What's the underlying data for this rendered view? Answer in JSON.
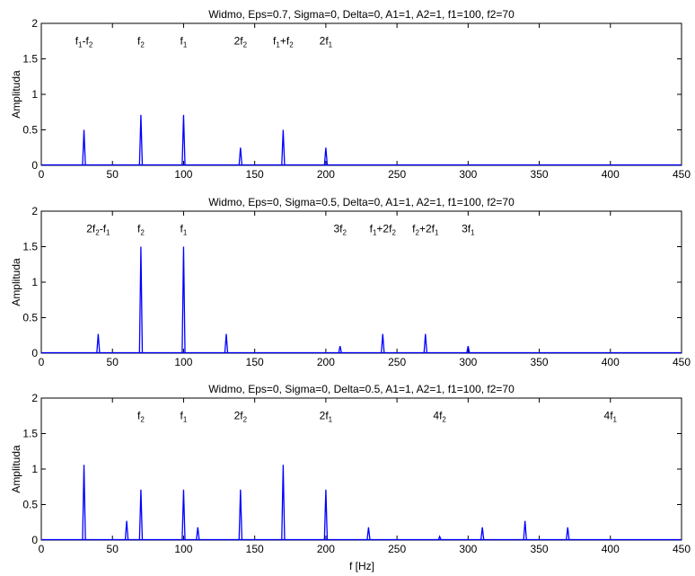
{
  "figure": {
    "xlabel": "f [Hz]"
  },
  "chart_data": [
    {
      "type": "line",
      "title": "Widmo, Eps=0.7, Sigma=0, Delta=0, A1=1, A2=1, f1=100, f2=70",
      "xlabel": "",
      "ylabel": "Amplituda",
      "xlim": [
        0,
        450
      ],
      "ylim": [
        0,
        2
      ],
      "xticks": [
        "0",
        "50",
        "100",
        "150",
        "200",
        "250",
        "300",
        "350",
        "400",
        "450"
      ],
      "yticks": [
        "0",
        "0.5",
        "1",
        "1.5",
        "2"
      ],
      "grid": false,
      "series": [
        {
          "color": "#0000ff",
          "peaks": [
            [
              30,
              0.5
            ],
            [
              70,
              0.71
            ],
            [
              100,
              0.71
            ],
            [
              140,
              0.25
            ],
            [
              170,
              0.5
            ],
            [
              200,
              0.25
            ]
          ]
        }
      ],
      "annotations": [
        {
          "x": 30,
          "y": 1.7,
          "parts": [
            [
              "f",
              0
            ],
            [
              "1",
              1
            ],
            [
              "-f",
              0
            ],
            [
              "2",
              1
            ]
          ]
        },
        {
          "x": 70,
          "y": 1.7,
          "parts": [
            [
              "f",
              0
            ],
            [
              "2",
              1
            ]
          ]
        },
        {
          "x": 100,
          "y": 1.7,
          "parts": [
            [
              "f",
              0
            ],
            [
              "1",
              1
            ]
          ]
        },
        {
          "x": 140,
          "y": 1.7,
          "parts": [
            [
              "2f",
              0
            ],
            [
              "2",
              1
            ]
          ]
        },
        {
          "x": 170,
          "y": 1.7,
          "parts": [
            [
              "f",
              0
            ],
            [
              "1",
              1
            ],
            [
              "+f",
              0
            ],
            [
              "2",
              1
            ]
          ]
        },
        {
          "x": 200,
          "y": 1.7,
          "parts": [
            [
              "2f",
              0
            ],
            [
              "1",
              1
            ]
          ]
        }
      ]
    },
    {
      "type": "line",
      "title": "Widmo, Eps=0, Sigma=0.5, Delta=0, A1=1, A2=1, f1=100, f2=70",
      "xlabel": "",
      "ylabel": "Amplituda",
      "xlim": [
        0,
        450
      ],
      "ylim": [
        0,
        2
      ],
      "xticks": [
        "0",
        "50",
        "100",
        "150",
        "200",
        "250",
        "300",
        "350",
        "400",
        "450"
      ],
      "yticks": [
        "0",
        "0.5",
        "1",
        "1.5",
        "2"
      ],
      "grid": false,
      "series": [
        {
          "color": "#0000ff",
          "peaks": [
            [
              40,
              0.27
            ],
            [
              70,
              1.5
            ],
            [
              100,
              1.5
            ],
            [
              130,
              0.27
            ],
            [
              210,
              0.1
            ],
            [
              240,
              0.27
            ],
            [
              270,
              0.27
            ],
            [
              300,
              0.1
            ]
          ]
        }
      ],
      "annotations": [
        {
          "x": 40,
          "y": 1.7,
          "parts": [
            [
              "2f",
              0
            ],
            [
              "2",
              1
            ],
            [
              "-f",
              0
            ],
            [
              "1",
              1
            ]
          ]
        },
        {
          "x": 70,
          "y": 1.7,
          "parts": [
            [
              "f",
              0
            ],
            [
              "2",
              1
            ]
          ]
        },
        {
          "x": 100,
          "y": 1.7,
          "parts": [
            [
              "f",
              0
            ],
            [
              "1",
              1
            ]
          ]
        },
        {
          "x": 210,
          "y": 1.7,
          "parts": [
            [
              "3f",
              0
            ],
            [
              "2",
              1
            ]
          ]
        },
        {
          "x": 240,
          "y": 1.7,
          "parts": [
            [
              "f",
              0
            ],
            [
              "1",
              1
            ],
            [
              "+2f",
              0
            ],
            [
              "2",
              1
            ]
          ]
        },
        {
          "x": 270,
          "y": 1.7,
          "parts": [
            [
              "f",
              0
            ],
            [
              "2",
              1
            ],
            [
              "+2f",
              0
            ],
            [
              "1",
              1
            ]
          ]
        },
        {
          "x": 300,
          "y": 1.7,
          "parts": [
            [
              "3f",
              0
            ],
            [
              "1",
              1
            ]
          ]
        }
      ]
    },
    {
      "type": "line",
      "title": "Widmo, Eps=0, Sigma=0, Delta=0.5, A1=1, A2=1, f1=100, f2=70",
      "xlabel": "f [Hz]",
      "ylabel": "Amplituda",
      "xlim": [
        0,
        450
      ],
      "ylim": [
        0,
        2
      ],
      "xticks": [
        "0",
        "50",
        "100",
        "150",
        "200",
        "250",
        "300",
        "350",
        "400",
        "450"
      ],
      "yticks": [
        "0",
        "0.5",
        "1",
        "1.5",
        "2"
      ],
      "grid": false,
      "series": [
        {
          "color": "#0000ff",
          "peaks": [
            [
              30,
              1.06
            ],
            [
              60,
              0.27
            ],
            [
              70,
              0.71
            ],
            [
              100,
              0.71
            ],
            [
              110,
              0.18
            ],
            [
              140,
              0.71
            ],
            [
              170,
              1.06
            ],
            [
              200,
              0.71
            ],
            [
              230,
              0.18
            ],
            [
              280,
              0.05
            ],
            [
              310,
              0.18
            ],
            [
              340,
              0.27
            ],
            [
              370,
              0.18
            ]
          ]
        }
      ],
      "annotations": [
        {
          "x": 70,
          "y": 1.7,
          "parts": [
            [
              "f",
              0
            ],
            [
              "2",
              1
            ]
          ]
        },
        {
          "x": 100,
          "y": 1.7,
          "parts": [
            [
              "f",
              0
            ],
            [
              "1",
              1
            ]
          ]
        },
        {
          "x": 140,
          "y": 1.7,
          "parts": [
            [
              "2f",
              0
            ],
            [
              "2",
              1
            ]
          ]
        },
        {
          "x": 200,
          "y": 1.7,
          "parts": [
            [
              "2f",
              0
            ],
            [
              "1",
              1
            ]
          ]
        },
        {
          "x": 280,
          "y": 1.7,
          "parts": [
            [
              "4f",
              0
            ],
            [
              "2",
              1
            ]
          ]
        },
        {
          "x": 400,
          "y": 1.7,
          "parts": [
            [
              "4f",
              0
            ],
            [
              "1",
              1
            ]
          ]
        }
      ]
    }
  ]
}
